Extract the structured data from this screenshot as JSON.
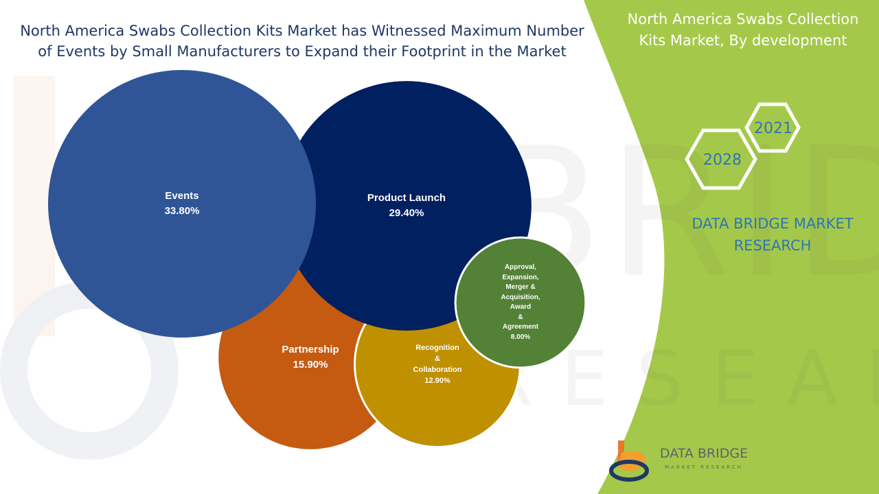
{
  "header": {
    "title_line1": "North America Swabs Collection Kits Market has Witnessed Maximum Number",
    "title_line2": "of Events by Small Manufacturers to Expand their Footprint in the Market"
  },
  "side_panel": {
    "title_line1": "North America Swabs Collection",
    "title_line2": "Kits Market, By development",
    "year_start": "2021",
    "year_end": "2028",
    "brand_line1": "DATA BRIDGE MARKET",
    "brand_line2": "RESEARCH",
    "logo_text": "DATA BRIDGE",
    "logo_subtext": "MARKET RESEARCH",
    "accent_color": "#a4c94a",
    "brand_color": "#2e75b6"
  },
  "chart_data": {
    "type": "bubble",
    "title": "North America Swabs Collection Kits Market has Witnessed Maximum Number of Events by Small Manufacturers to Expand their Footprint in the Market",
    "unit": "%",
    "series": [
      {
        "name": "Events",
        "label_lines": [
          "Events"
        ],
        "value": 33.8,
        "display": "33.80%",
        "color": "#2f5597"
      },
      {
        "name": "Product Launch",
        "label_lines": [
          "Product Launch"
        ],
        "value": 29.4,
        "display": "29.40%",
        "color": "#002060"
      },
      {
        "name": "Partnership",
        "label_lines": [
          "Partnership"
        ],
        "value": 15.9,
        "display": "15.90%",
        "color": "#c55a11"
      },
      {
        "name": "Recognition & Collaboration",
        "label_lines": [
          "Recognition",
          "&",
          "Collaboration"
        ],
        "value": 12.9,
        "display": "12.90%",
        "color": "#bf9000"
      },
      {
        "name": "Approval, Expansion, Merger & Acquisition, Award & Agreement",
        "label_lines": [
          "Approval,",
          "Expansion,",
          "Merger &",
          "Acquisition,",
          "Award",
          "&",
          "Agreement"
        ],
        "value": 8.0,
        "display": "8.00%",
        "color": "#538135"
      }
    ]
  }
}
